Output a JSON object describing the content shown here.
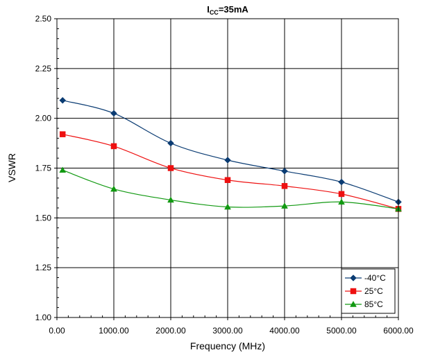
{
  "chart_data": {
    "type": "line",
    "title": {
      "main": "I",
      "sub": "CC",
      "rest": "=35mA"
    },
    "xlabel": "Frequency (MHz)",
    "ylabel": "VSWR",
    "xlim": [
      0,
      6000
    ],
    "ylim": [
      1.0,
      2.5
    ],
    "x_ticks": [
      "0.00",
      "1000.00",
      "2000.00",
      "3000.00",
      "4000.00",
      "5000.00",
      "6000.00"
    ],
    "y_ticks": [
      "1.00",
      "1.25",
      "1.50",
      "1.75",
      "2.00",
      "2.25",
      "2.50"
    ],
    "grid": true,
    "smooth": true,
    "legend_position": "bottom-right",
    "series": [
      {
        "name": "-40°C",
        "color": "#0b3c73",
        "marker": "diamond",
        "x": [
          100,
          1000,
          2000,
          3000,
          4000,
          5000,
          6000
        ],
        "y": [
          2.09,
          2.025,
          1.875,
          1.79,
          1.735,
          1.68,
          1.58
        ]
      },
      {
        "name": "25°C",
        "color": "#ee1111",
        "marker": "square",
        "x": [
          100,
          1000,
          2000,
          3000,
          4000,
          5000,
          6000
        ],
        "y": [
          1.92,
          1.86,
          1.75,
          1.69,
          1.66,
          1.62,
          1.545
        ]
      },
      {
        "name": "85°C",
        "color": "#119911",
        "marker": "triangle",
        "x": [
          100,
          1000,
          2000,
          3000,
          4000,
          5000,
          6000
        ],
        "y": [
          1.74,
          1.645,
          1.59,
          1.555,
          1.56,
          1.58,
          1.545
        ]
      }
    ]
  }
}
